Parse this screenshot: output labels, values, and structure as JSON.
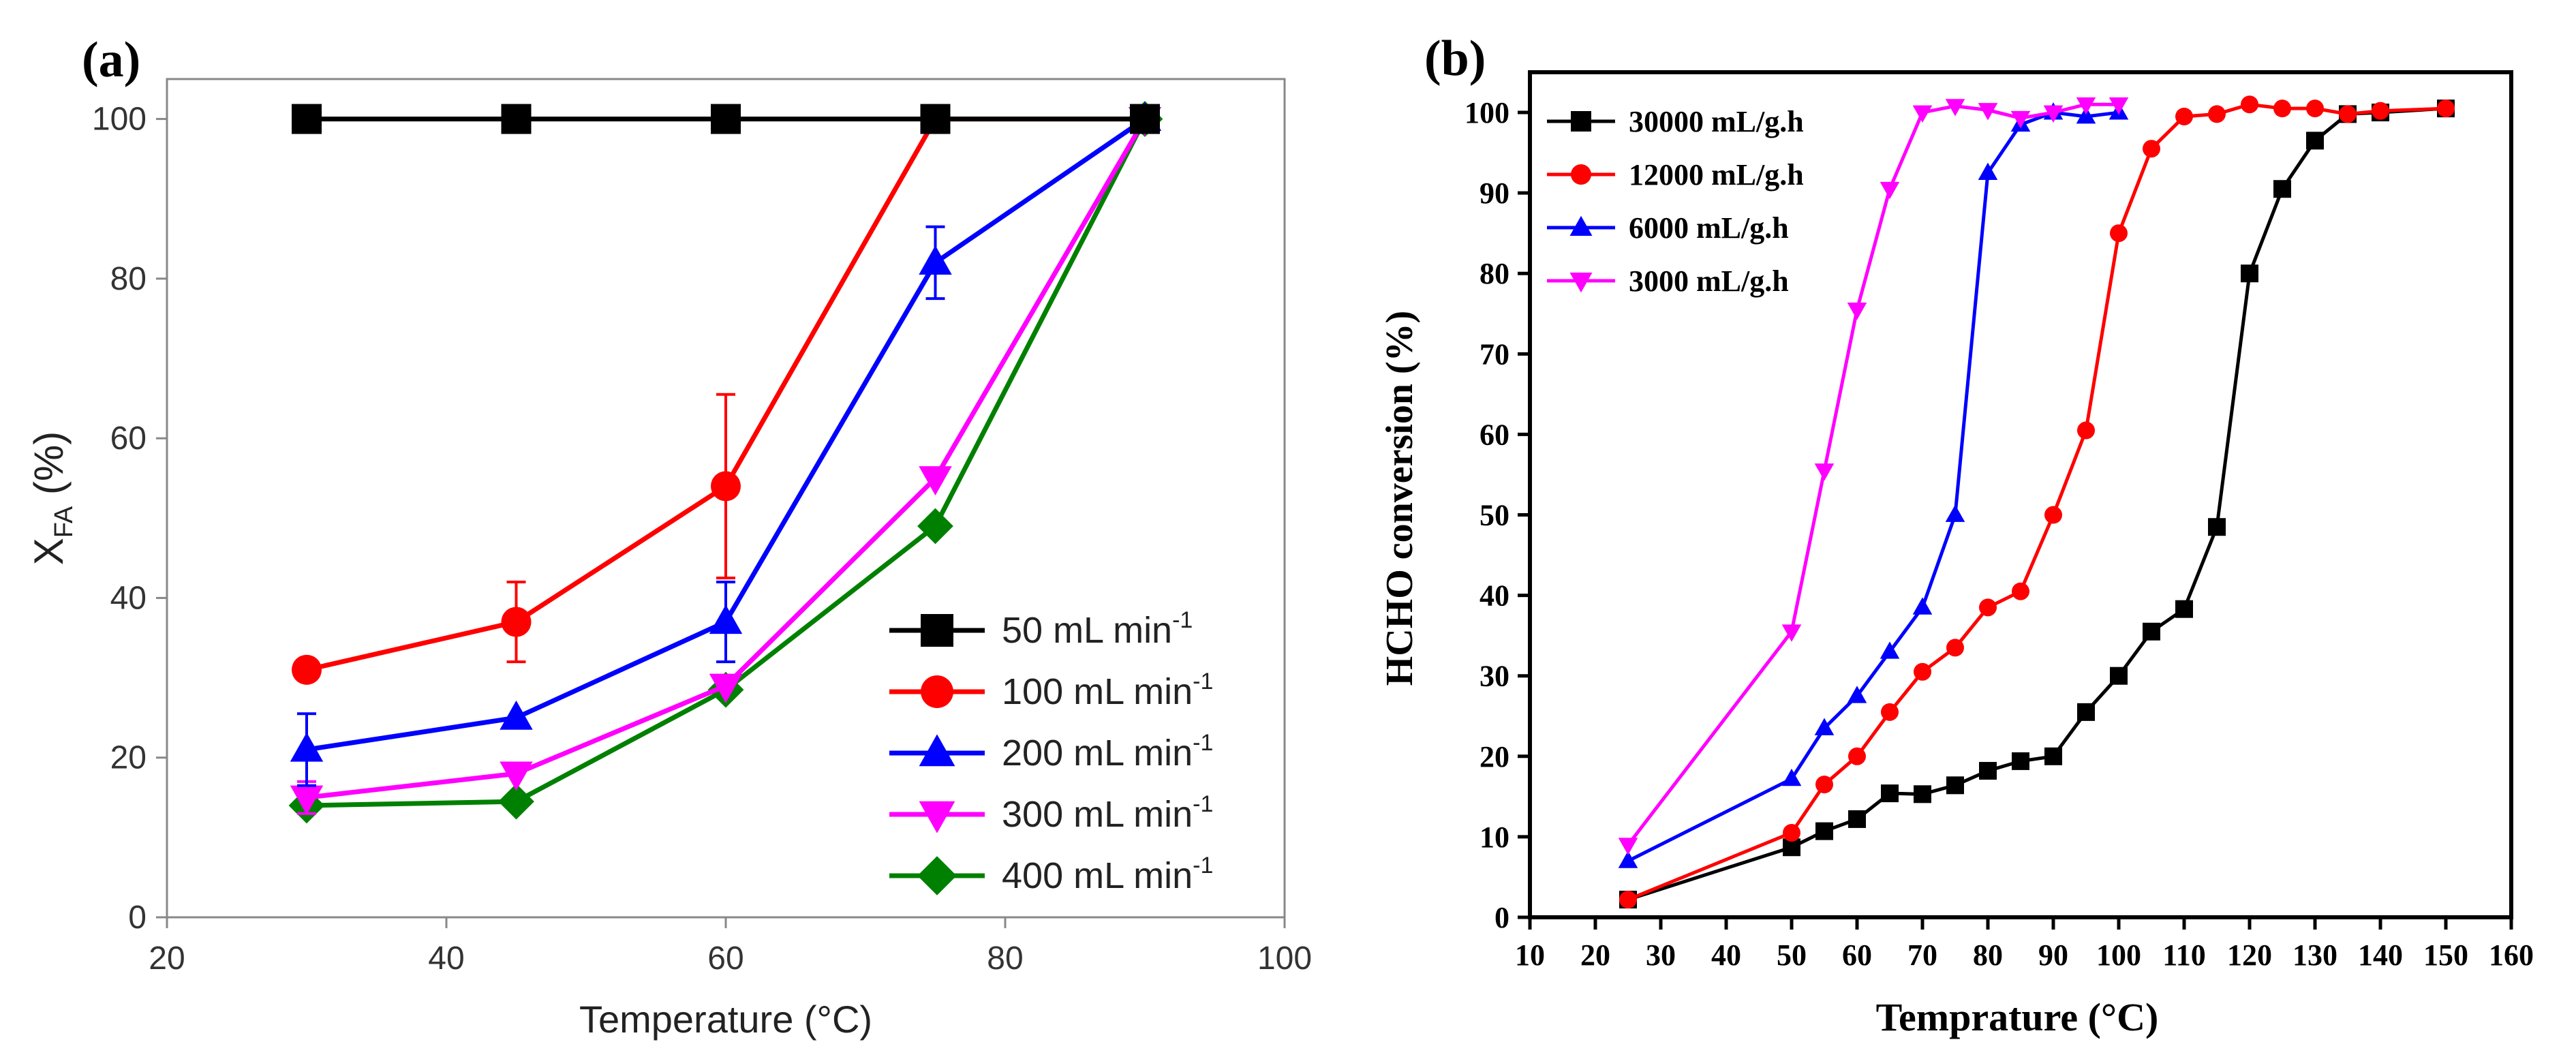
{
  "colors": {
    "black": "#000000",
    "red": "#ff0000",
    "blue": "#0000ff",
    "magenta": "#ff00ff",
    "green": "#008000"
  },
  "chart_data": [
    {
      "panel_label": "(a)",
      "type": "line",
      "title": "",
      "xlabel": "Temperature (°C)",
      "ylabel_main": "X",
      "ylabel_sub": "FA",
      "ylabel_suffix": " (%)",
      "xlim": [
        20,
        100
      ],
      "ylim": [
        0,
        105
      ],
      "xticks": [
        20,
        40,
        60,
        80,
        100
      ],
      "yticks": [
        0,
        20,
        40,
        60,
        80,
        100
      ],
      "legend_position": "bottom-right",
      "series": [
        {
          "name": "50 mL min",
          "sup": "-1",
          "color": "#000000",
          "marker": "square",
          "x": [
            30,
            45,
            60,
            75,
            90
          ],
          "values": [
            100,
            100,
            100,
            100,
            100
          ],
          "err": [
            0,
            0,
            0,
            0,
            0
          ]
        },
        {
          "name": "100 mL min",
          "sup": "-1",
          "color": "#ff0000",
          "marker": "circle",
          "x": [
            30,
            45,
            60,
            75,
            90
          ],
          "values": [
            31,
            37,
            54,
            100,
            100
          ],
          "err": [
            0,
            5,
            11.5,
            0,
            0
          ]
        },
        {
          "name": "200 mL min",
          "sup": "-1",
          "color": "#0000ff",
          "marker": "triangle-up",
          "x": [
            30,
            45,
            60,
            75,
            90
          ],
          "values": [
            21,
            25,
            37,
            82,
            100
          ],
          "err": [
            4.5,
            0,
            5,
            4.5,
            0
          ]
        },
        {
          "name": "300 mL min",
          "sup": "-1",
          "color": "#ff00ff",
          "marker": "triangle-down",
          "x": [
            30,
            45,
            60,
            75,
            90
          ],
          "values": [
            15,
            18,
            29,
            55,
            100
          ],
          "err": [
            2,
            0,
            0,
            0,
            0
          ]
        },
        {
          "name": "400 mL min",
          "sup": "-1",
          "color": "#008000",
          "marker": "diamond",
          "x": [
            30,
            45,
            60,
            75,
            90
          ],
          "values": [
            14,
            14.5,
            28.5,
            49,
            100
          ],
          "err": [
            0,
            0,
            0,
            0,
            0
          ]
        }
      ]
    },
    {
      "panel_label": "(b)",
      "type": "line",
      "title": "",
      "xlabel": "Temprature (°C)",
      "ylabel": "HCHO conversion (%)",
      "xlim": [
        10,
        160
      ],
      "ylim": [
        0,
        105
      ],
      "xticks": [
        10,
        20,
        30,
        40,
        50,
        60,
        70,
        80,
        90,
        100,
        110,
        120,
        130,
        140,
        150,
        160
      ],
      "yticks": [
        0,
        10,
        20,
        30,
        40,
        50,
        60,
        70,
        80,
        90,
        100
      ],
      "legend_position": "top-left",
      "series": [
        {
          "name": "30000 mL/g.h",
          "color": "#000000",
          "marker": "square",
          "x": [
            25,
            50,
            55,
            60,
            65,
            70,
            75,
            80,
            85,
            90,
            95,
            100,
            105,
            110,
            115,
            120,
            125,
            130,
            135,
            140,
            150
          ],
          "values": [
            2.2,
            8.7,
            10.7,
            12.2,
            15.4,
            15.3,
            16.4,
            18.2,
            19.4,
            20,
            25.5,
            30,
            35.5,
            38.3,
            48.5,
            80,
            90.5,
            96.5,
            99.8,
            100,
            100.5
          ]
        },
        {
          "name": "12000 mL/g.h",
          "color": "#ff0000",
          "marker": "circle",
          "x": [
            25,
            50,
            55,
            60,
            65,
            70,
            75,
            80,
            85,
            90,
            95,
            100,
            105,
            110,
            115,
            120,
            125,
            130,
            135,
            140,
            150
          ],
          "values": [
            2.2,
            10.5,
            16.5,
            20,
            25.5,
            30.5,
            33.5,
            38.5,
            40.5,
            50,
            60.5,
            85,
            95.5,
            99.5,
            99.8,
            101,
            100.5,
            100.5,
            99.8,
            100.2,
            100.5
          ]
        },
        {
          "name": "6000 mL/g.h",
          "color": "#0000ff",
          "marker": "triangle-up",
          "x": [
            25,
            50,
            55,
            60,
            65,
            70,
            75,
            80,
            85,
            90,
            95,
            100
          ],
          "values": [
            7,
            17.2,
            23.5,
            27.5,
            33,
            38.5,
            50,
            92.5,
            98.5,
            100,
            99.5,
            100
          ]
        },
        {
          "name": "3000 mL/g.h",
          "color": "#ff00ff",
          "marker": "triangle-down",
          "x": [
            25,
            50,
            55,
            60,
            65,
            70,
            75,
            80,
            85,
            90,
            95,
            100
          ],
          "values": [
            9,
            35.5,
            55.5,
            75.5,
            90.5,
            100,
            100.8,
            100.3,
            99.3,
            100,
            101,
            101
          ]
        }
      ]
    }
  ]
}
